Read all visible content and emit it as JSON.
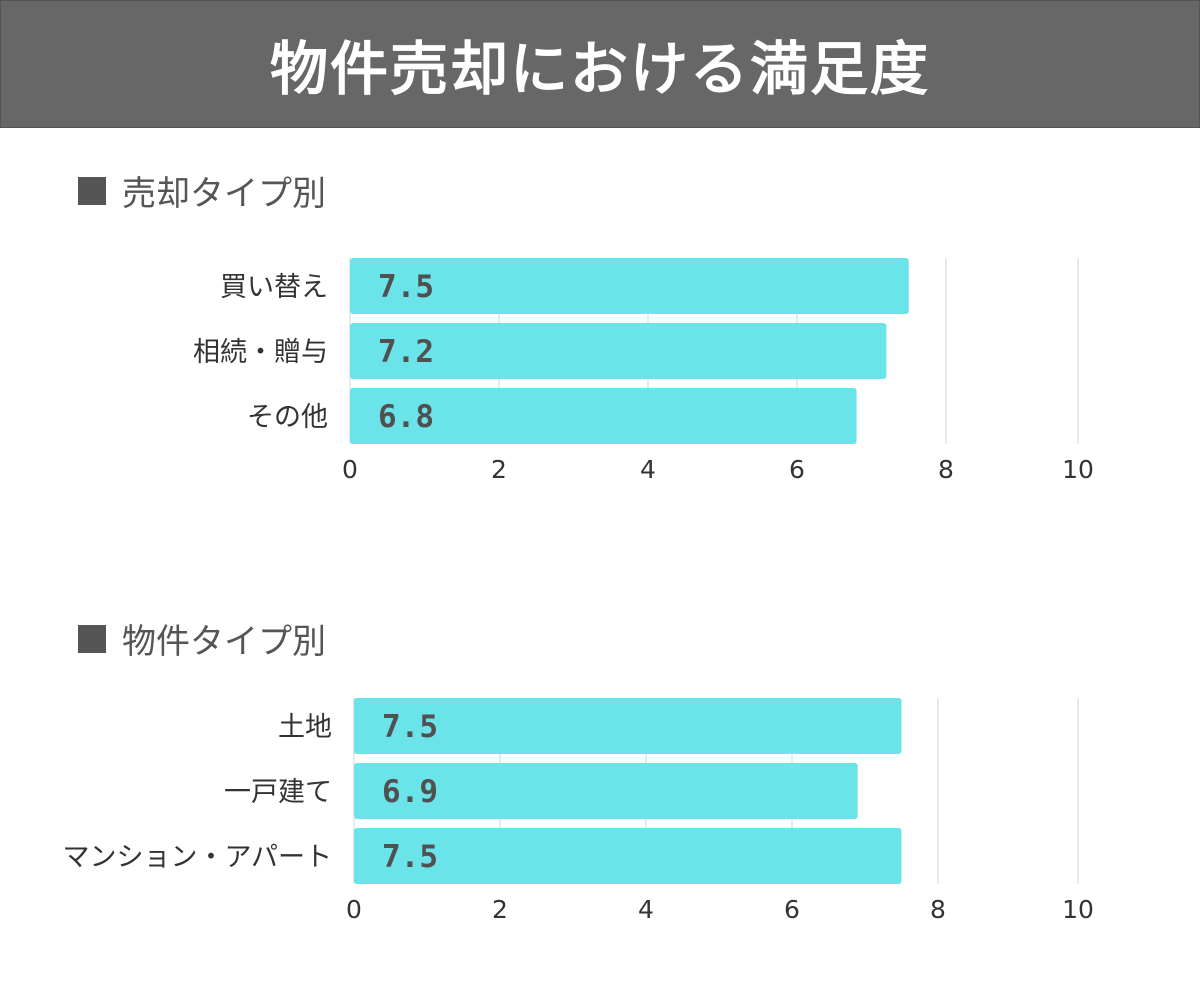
{
  "header": {
    "title": "物件売却における満足度"
  },
  "colors": {
    "bar": "#6ae4e8",
    "grid": "#d6d6d6",
    "header_bg": "#676767"
  },
  "chart_data": [
    {
      "type": "bar",
      "orientation": "horizontal",
      "title": "売却タイプ別",
      "categories": [
        "買い替え",
        "相続・贈与",
        "その他"
      ],
      "values": [
        7.5,
        7.2,
        6.8
      ],
      "value_labels": [
        "7.5",
        "7.2",
        "6.8"
      ],
      "xlim": [
        0,
        10
      ],
      "ticks": [
        "0",
        "2",
        "4",
        "6",
        "8",
        "10"
      ],
      "grid": true
    },
    {
      "type": "bar",
      "orientation": "horizontal",
      "title": "物件タイプ別",
      "categories": [
        "土地",
        "一戸建て",
        "マンション・アパート"
      ],
      "values": [
        7.5,
        6.9,
        7.5
      ],
      "value_labels": [
        "7.5",
        "6.9",
        "7.5"
      ],
      "xlim": [
        0,
        10
      ],
      "ticks": [
        "0",
        "2",
        "4",
        "6",
        "8",
        "10"
      ],
      "grid": true
    }
  ]
}
